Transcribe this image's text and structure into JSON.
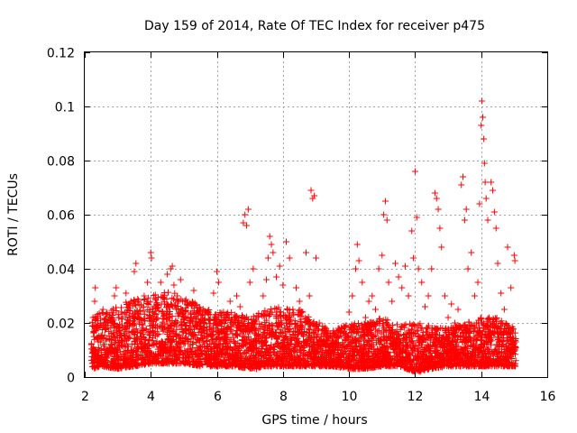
{
  "chart_data": {
    "type": "scatter",
    "title": "Day 159 of 2014, Rate Of TEC Index for receiver p475",
    "xlabel": "GPS time / hours",
    "ylabel": "ROTI / TECUs",
    "xlim": [
      2,
      16
    ],
    "ylim": [
      0,
      0.12
    ],
    "xticks": [
      2,
      4,
      6,
      8,
      10,
      12,
      14,
      16
    ],
    "xtick_labels": [
      "2",
      "4",
      "6",
      "8",
      "10",
      "12",
      "14",
      "16"
    ],
    "yticks": [
      0,
      0.02,
      0.04,
      0.06,
      0.08,
      0.1,
      0.12
    ],
    "ytick_labels": [
      "0",
      "0.02",
      "0.04",
      "0.06",
      "0.08",
      "0.1",
      "0.12"
    ],
    "grid": true,
    "marker": "+",
    "color": "#ff0000",
    "points": [
      [
        2.2,
        0.012
      ],
      [
        2.25,
        0.022
      ],
      [
        2.3,
        0.028
      ],
      [
        2.32,
        0.033
      ],
      [
        2.35,
        0.008
      ],
      [
        2.4,
        0.018
      ],
      [
        2.5,
        0.015
      ],
      [
        2.55,
        0.025
      ],
      [
        2.6,
        0.01
      ],
      [
        2.7,
        0.02
      ],
      [
        2.8,
        0.014
      ],
      [
        2.9,
        0.03
      ],
      [
        2.95,
        0.033
      ],
      [
        3.0,
        0.005
      ],
      [
        3.05,
        0.017
      ],
      [
        3.1,
        0.024
      ],
      [
        3.2,
        0.012
      ],
      [
        3.25,
        0.031
      ],
      [
        3.3,
        0.019
      ],
      [
        3.4,
        0.028
      ],
      [
        3.5,
        0.039
      ],
      [
        3.55,
        0.042
      ],
      [
        3.6,
        0.022
      ],
      [
        3.7,
        0.015
      ],
      [
        3.8,
        0.03
      ],
      [
        3.9,
        0.035
      ],
      [
        4.0,
        0.046
      ],
      [
        4.02,
        0.044
      ],
      [
        4.1,
        0.026
      ],
      [
        4.2,
        0.018
      ],
      [
        4.3,
        0.035
      ],
      [
        4.4,
        0.029
      ],
      [
        4.5,
        0.038
      ],
      [
        4.6,
        0.04
      ],
      [
        4.65,
        0.041
      ],
      [
        4.7,
        0.034
      ],
      [
        4.8,
        0.03
      ],
      [
        4.9,
        0.036
      ],
      [
        5.0,
        0.022
      ],
      [
        5.1,
        0.027
      ],
      [
        5.2,
        0.019
      ],
      [
        5.3,
        0.032
      ],
      [
        5.4,
        0.014
      ],
      [
        5.5,
        0.025
      ],
      [
        5.6,
        0.02
      ],
      [
        5.7,
        0.016
      ],
      [
        5.8,
        0.023
      ],
      [
        5.9,
        0.031
      ],
      [
        6.0,
        0.039
      ],
      [
        6.05,
        0.035
      ],
      [
        6.1,
        0.012
      ],
      [
        6.2,
        0.024
      ],
      [
        6.3,
        0.018
      ],
      [
        6.4,
        0.028
      ],
      [
        6.5,
        0.02
      ],
      [
        6.6,
        0.03
      ],
      [
        6.7,
        0.026
      ],
      [
        6.8,
        0.057
      ],
      [
        6.85,
        0.06
      ],
      [
        6.9,
        0.056
      ],
      [
        6.95,
        0.062
      ],
      [
        7.0,
        0.035
      ],
      [
        7.1,
        0.04
      ],
      [
        7.2,
        0.003
      ],
      [
        7.3,
        0.015
      ],
      [
        7.4,
        0.03
      ],
      [
        7.5,
        0.036
      ],
      [
        7.55,
        0.044
      ],
      [
        7.6,
        0.052
      ],
      [
        7.65,
        0.049
      ],
      [
        7.7,
        0.046
      ],
      [
        7.8,
        0.037
      ],
      [
        7.9,
        0.041
      ],
      [
        8.0,
        0.034
      ],
      [
        8.1,
        0.05
      ],
      [
        8.2,
        0.044
      ],
      [
        8.3,
        0.025
      ],
      [
        8.4,
        0.033
      ],
      [
        8.5,
        0.028
      ],
      [
        8.6,
        0.024
      ],
      [
        8.7,
        0.046
      ],
      [
        8.8,
        0.03
      ],
      [
        8.85,
        0.069
      ],
      [
        8.9,
        0.066
      ],
      [
        8.95,
        0.067
      ],
      [
        9.0,
        0.044
      ],
      [
        9.1,
        0.02
      ],
      [
        9.2,
        0.012
      ],
      [
        9.3,
        0.017
      ],
      [
        9.4,
        0.009
      ],
      [
        9.5,
        0.015
      ],
      [
        9.6,
        0.013
      ],
      [
        9.7,
        0.018
      ],
      [
        9.8,
        0.011
      ],
      [
        9.9,
        0.016
      ],
      [
        10.0,
        0.024
      ],
      [
        10.1,
        0.03
      ],
      [
        10.2,
        0.04
      ],
      [
        10.25,
        0.049
      ],
      [
        10.3,
        0.043
      ],
      [
        10.4,
        0.035
      ],
      [
        10.5,
        0.022
      ],
      [
        10.6,
        0.028
      ],
      [
        10.7,
        0.03
      ],
      [
        10.8,
        0.025
      ],
      [
        10.9,
        0.04
      ],
      [
        11.0,
        0.045
      ],
      [
        11.05,
        0.06
      ],
      [
        11.1,
        0.065
      ],
      [
        11.15,
        0.058
      ],
      [
        11.2,
        0.035
      ],
      [
        11.3,
        0.028
      ],
      [
        11.4,
        0.042
      ],
      [
        11.5,
        0.037
      ],
      [
        11.6,
        0.033
      ],
      [
        11.7,
        0.041
      ],
      [
        11.8,
        0.03
      ],
      [
        11.9,
        0.054
      ],
      [
        11.95,
        0.044
      ],
      [
        12.0,
        0.076
      ],
      [
        12.05,
        0.059
      ],
      [
        12.1,
        0.04
      ],
      [
        12.15,
        0.002
      ],
      [
        12.2,
        0.035
      ],
      [
        12.3,
        0.026
      ],
      [
        12.4,
        0.03
      ],
      [
        12.5,
        0.04
      ],
      [
        12.6,
        0.068
      ],
      [
        12.65,
        0.066
      ],
      [
        12.7,
        0.062
      ],
      [
        12.75,
        0.055
      ],
      [
        12.8,
        0.048
      ],
      [
        12.9,
        0.03
      ],
      [
        13.0,
        0.022
      ],
      [
        13.1,
        0.027
      ],
      [
        13.2,
        0.02
      ],
      [
        13.3,
        0.025
      ],
      [
        13.4,
        0.071
      ],
      [
        13.45,
        0.074
      ],
      [
        13.5,
        0.058
      ],
      [
        13.55,
        0.062
      ],
      [
        13.6,
        0.04
      ],
      [
        13.7,
        0.046
      ],
      [
        13.8,
        0.03
      ],
      [
        13.9,
        0.035
      ],
      [
        13.95,
        0.064
      ],
      [
        14.0,
        0.093
      ],
      [
        14.02,
        0.102
      ],
      [
        14.05,
        0.096
      ],
      [
        14.08,
        0.088
      ],
      [
        14.1,
        0.079
      ],
      [
        14.12,
        0.072
      ],
      [
        14.15,
        0.066
      ],
      [
        14.2,
        0.058
      ],
      [
        14.3,
        0.072
      ],
      [
        14.35,
        0.069
      ],
      [
        14.4,
        0.061
      ],
      [
        14.45,
        0.055
      ],
      [
        14.5,
        0.042
      ],
      [
        14.6,
        0.031
      ],
      [
        14.7,
        0.025
      ],
      [
        14.8,
        0.048
      ],
      [
        14.9,
        0.033
      ],
      [
        15.0,
        0.045
      ],
      [
        15.02,
        0.043
      ],
      [
        15.05,
        0.013
      ]
    ],
    "dense_band": [
      [
        2.2,
        0.003,
        0.022
      ],
      [
        2.5,
        0.004,
        0.024
      ],
      [
        3.0,
        0.003,
        0.026
      ],
      [
        3.5,
        0.004,
        0.03
      ],
      [
        4.0,
        0.005,
        0.03
      ],
      [
        4.5,
        0.005,
        0.032
      ],
      [
        5.0,
        0.005,
        0.03
      ],
      [
        5.5,
        0.004,
        0.026
      ],
      [
        6.0,
        0.004,
        0.024
      ],
      [
        6.5,
        0.004,
        0.024
      ],
      [
        7.0,
        0.003,
        0.022
      ],
      [
        7.5,
        0.004,
        0.025
      ],
      [
        8.0,
        0.004,
        0.026
      ],
      [
        8.5,
        0.004,
        0.025
      ],
      [
        9.0,
        0.004,
        0.02
      ],
      [
        9.5,
        0.004,
        0.017
      ],
      [
        10.0,
        0.003,
        0.02
      ],
      [
        10.5,
        0.003,
        0.02
      ],
      [
        11.0,
        0.004,
        0.022
      ],
      [
        11.5,
        0.004,
        0.02
      ],
      [
        12.0,
        0.002,
        0.02
      ],
      [
        12.5,
        0.003,
        0.019
      ],
      [
        13.0,
        0.004,
        0.018
      ],
      [
        13.5,
        0.004,
        0.02
      ],
      [
        14.0,
        0.004,
        0.022
      ],
      [
        14.5,
        0.004,
        0.022
      ],
      [
        15.05,
        0.004,
        0.018
      ]
    ]
  }
}
